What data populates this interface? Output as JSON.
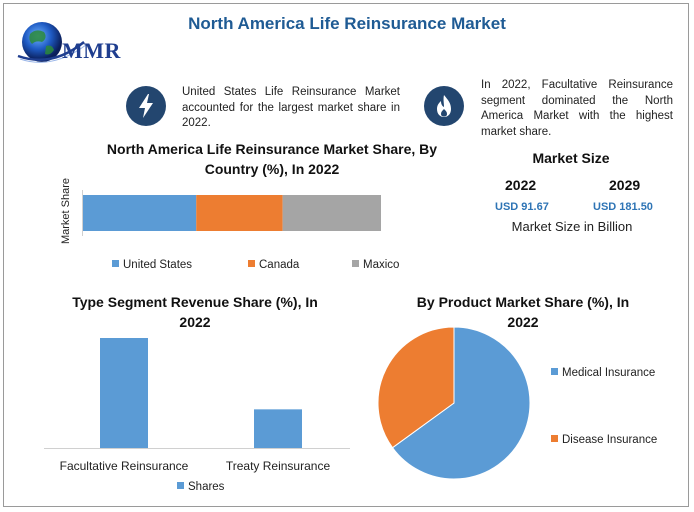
{
  "title": "North America Life Reinsurance Market",
  "logo": {
    "text": "MMR"
  },
  "facts": [
    {
      "icon": "lightning-icon",
      "text": "United States Life Reinsurance Market accounted for the largest market share in 2022."
    },
    {
      "icon": "flame-icon",
      "text": "In 2022, Facultative Reinsurance segment dominated the North America Market with the highest market share."
    }
  ],
  "market_size": {
    "title": "Market Size",
    "years": [
      {
        "year": "2022",
        "value": "USD 91.67"
      },
      {
        "year": "2029",
        "value": "USD 181.50"
      }
    ],
    "unit_label": "Market Size in Billion"
  },
  "colors": {
    "blue": "#5b9bd5",
    "orange": "#ed7d31",
    "gray": "#a5a5a5",
    "title_blue": "#1f5b94",
    "badge": "#23466f"
  },
  "chart_data": [
    {
      "type": "bar",
      "orientation": "horizontal-stacked",
      "title": "North America Life Reinsurance Market Share, By Country (%), In 2022",
      "ylabel": "Market Share",
      "categories": [
        ""
      ],
      "series": [
        {
          "name": "United States",
          "values": [
            38
          ]
        },
        {
          "name": "Canada",
          "values": [
            29
          ]
        },
        {
          "name": "Maxico",
          "values": [
            33
          ]
        }
      ],
      "legend": "bottom"
    },
    {
      "type": "bar",
      "title": "Type Segment Revenue Share (%), In 2022",
      "categories": [
        "Facultative Reinsurance",
        "Treaty Reinsurance"
      ],
      "series": [
        {
          "name": "Shares",
          "values": [
            74,
            26
          ]
        }
      ],
      "legend": "bottom"
    },
    {
      "type": "pie",
      "title": "By Product Market Share (%), In 2022",
      "labels": [
        "Medical Insurance",
        "Disease Insurance"
      ],
      "values": [
        65,
        35
      ],
      "legend": "right"
    }
  ]
}
